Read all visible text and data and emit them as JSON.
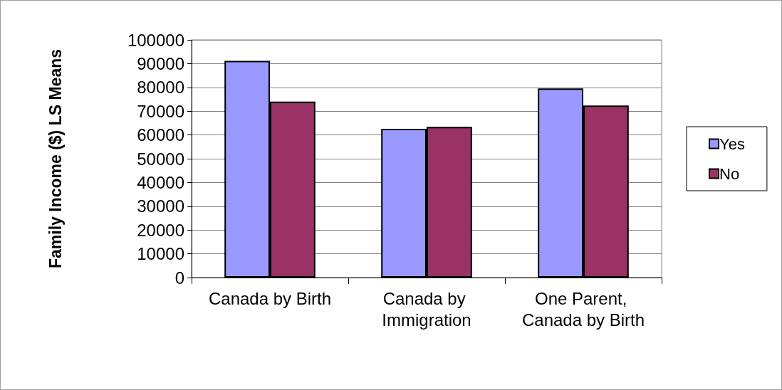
{
  "chart_data": {
    "type": "bar",
    "ylabel": "Family Income ($) LS Means",
    "categories": [
      "Canada by Birth",
      "Canada by Immigration",
      "One Parent, Canada by Birth"
    ],
    "series": [
      {
        "name": "Yes",
        "color": "#9999ff",
        "values": [
          91200,
          62600,
          79600
        ]
      },
      {
        "name": "No",
        "color": "#993366",
        "values": [
          74000,
          63400,
          72400
        ]
      }
    ],
    "ylim": [
      0,
      100000
    ],
    "yticks": [
      0,
      10000,
      20000,
      30000,
      40000,
      50000,
      60000,
      70000,
      80000,
      90000,
      100000
    ],
    "grid": "y",
    "legend": "right"
  }
}
